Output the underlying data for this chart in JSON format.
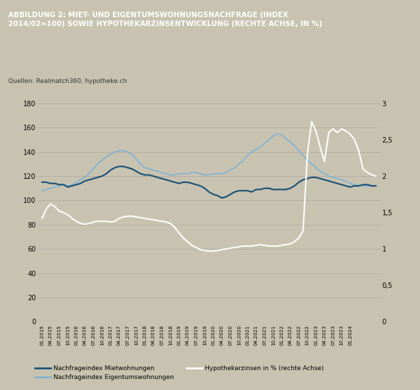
{
  "title": "ABBILDUNG 2: MIET- UND EIGENTUMSWOHNUNGSNACHFRAGE (INDEX\n2014/02=100) SOWIE HYPOTHEKARZINSENTWICKLUNG (RECHTE ACHSE, IN %)",
  "subtitle": "Quellen: Realmatch360, hypotheke.ch",
  "bg_color": "#c8c3b0",
  "plot_bg_color": "#c8c3b0",
  "grid_color": "#b0aba0",
  "ylim_left": [
    0,
    180
  ],
  "ylim_right": [
    0,
    3
  ],
  "yticks_left": [
    0,
    20,
    40,
    60,
    80,
    100,
    120,
    140,
    160,
    180
  ],
  "yticks_right": [
    0,
    0.5,
    1.0,
    1.5,
    2.0,
    2.5,
    3.0
  ],
  "miet_color": "#1b5276",
  "eigen_color": "#7fb3d3",
  "hyp_color": "#ffffff",
  "legend_entries": [
    "Nachfrageindex Mietwohnungen",
    "Nachfrageindex Eigentumswohnungen",
    "Hypothekarzinsen in % (rechte Achse)"
  ],
  "xtick_labels": [
    "01.2015",
    "04.2015",
    "07.2015",
    "10.2015",
    "01.2016",
    "04.2016",
    "07.2016",
    "10.2016",
    "01.2017",
    "04.2017",
    "07.2017",
    "10.2017",
    "01.2018",
    "04.2018",
    "07.2018",
    "10.2018",
    "01.2019",
    "04.2019",
    "07.2019",
    "10.2019",
    "01.2020",
    "04.2020",
    "07.2020",
    "10.2020",
    "01.2021",
    "04.2021",
    "07.2021",
    "10.2021",
    "01.2022",
    "04.2022",
    "07.2022",
    "10.2022",
    "01.2023",
    "04.2023",
    "07.2023",
    "10.2023",
    "01.2024"
  ],
  "miet": [
    115,
    115,
    114,
    114,
    113,
    113,
    111,
    112,
    113,
    114,
    116,
    117,
    118,
    119,
    120,
    122,
    125,
    127,
    128,
    128,
    127,
    126,
    124,
    122,
    121,
    121,
    120,
    119,
    118,
    117,
    116,
    115,
    114,
    115,
    115,
    114,
    113,
    112,
    110,
    107,
    105,
    104,
    102,
    103,
    105,
    107,
    108,
    108,
    108,
    107,
    109,
    109,
    110,
    110,
    109,
    109,
    109,
    109,
    110,
    112,
    115,
    117,
    118,
    119,
    119,
    118,
    117,
    116,
    115,
    114,
    113,
    112,
    111,
    112,
    112,
    113,
    113,
    112,
    112
  ],
  "eigen": [
    108,
    109,
    110,
    111,
    112,
    113,
    112,
    113,
    115,
    117,
    119,
    122,
    126,
    130,
    133,
    136,
    138,
    140,
    141,
    141,
    140,
    138,
    134,
    130,
    127,
    126,
    125,
    124,
    123,
    122,
    121,
    121,
    122,
    122,
    122,
    123,
    123,
    122,
    121,
    121,
    122,
    122,
    122,
    123,
    125,
    127,
    130,
    133,
    137,
    140,
    142,
    144,
    147,
    150,
    153,
    155,
    154,
    151,
    148,
    145,
    141,
    137,
    133,
    130,
    127,
    124,
    122,
    120,
    119,
    118,
    117,
    116,
    114,
    113,
    112,
    112,
    112,
    112,
    112
  ],
  "hyp": [
    1.42,
    1.55,
    1.62,
    1.58,
    1.52,
    1.5,
    1.47,
    1.42,
    1.38,
    1.35,
    1.34,
    1.35,
    1.37,
    1.38,
    1.38,
    1.38,
    1.37,
    1.38,
    1.42,
    1.44,
    1.45,
    1.45,
    1.44,
    1.43,
    1.42,
    1.41,
    1.4,
    1.39,
    1.38,
    1.37,
    1.35,
    1.3,
    1.22,
    1.15,
    1.1,
    1.05,
    1.02,
    0.99,
    0.98,
    0.97,
    0.97,
    0.98,
    0.99,
    1.0,
    1.01,
    1.02,
    1.03,
    1.04,
    1.04,
    1.04,
    1.05,
    1.06,
    1.05,
    1.04,
    1.04,
    1.04,
    1.05,
    1.06,
    1.07,
    1.1,
    1.15,
    1.25,
    2.3,
    2.75,
    2.62,
    2.4,
    2.2,
    2.6,
    2.65,
    2.6,
    2.65,
    2.62,
    2.58,
    2.5,
    2.35,
    2.1,
    2.05,
    2.02,
    2.0
  ]
}
